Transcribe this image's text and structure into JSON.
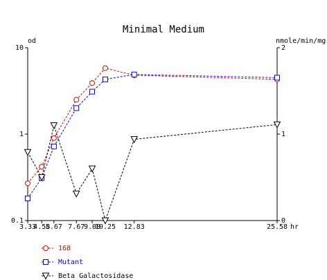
{
  "chart_data": {
    "type": "line",
    "title": "Minimal Medium",
    "left_axis": {
      "label": "od",
      "scale": "log",
      "range": [
        0.1,
        10
      ],
      "ticks": [
        {
          "value": 0.1,
          "label": "0.1"
        },
        {
          "value": 1,
          "label": "1"
        },
        {
          "value": 10,
          "label": "10"
        }
      ]
    },
    "right_axis": {
      "label": "nmole/min/mg",
      "scale": "linear",
      "range": [
        0,
        2
      ],
      "ticks": [
        {
          "value": 0,
          "label": "0"
        },
        {
          "value": 1,
          "label": "1"
        },
        {
          "value": 2,
          "label": "2"
        }
      ]
    },
    "x_axis": {
      "label": "hr",
      "range": [
        3.33,
        25.58
      ],
      "ticks": [
        {
          "value": 3.33,
          "label": "3.33"
        },
        {
          "value": 4.58,
          "label": "4.58"
        },
        {
          "value": 5.67,
          "label": "5.67"
        },
        {
          "value": 7.67,
          "label": "7.67"
        },
        {
          "value": 9.08,
          "label": "9.08"
        },
        {
          "value": 10.25,
          "label": "10.25"
        },
        {
          "value": 12.83,
          "label": "12.83"
        },
        {
          "value": 25.58,
          "label": "25.58"
        }
      ]
    },
    "grid": false,
    "legend_position": "bottom-left",
    "series": [
      {
        "name": "168",
        "axis": "left",
        "color": "#dd0000",
        "marker": "circle",
        "x": [
          3.33,
          4.58,
          5.67,
          7.67,
          9.08,
          10.25,
          12.83,
          25.58
        ],
        "y": [
          0.27,
          0.42,
          0.9,
          2.5,
          3.9,
          5.8,
          4.8,
          4.3
        ]
      },
      {
        "name": "Mutant",
        "axis": "left",
        "color": "#0000dd",
        "marker": "square",
        "x": [
          3.33,
          4.58,
          5.67,
          7.67,
          9.08,
          10.25,
          12.83,
          25.58
        ],
        "y": [
          0.18,
          0.31,
          0.72,
          2.0,
          3.1,
          4.3,
          4.9,
          4.5
        ]
      },
      {
        "name": "Beta Galactosidase",
        "axis": "right",
        "color": "#000000",
        "marker": "triangle-down",
        "x": [
          3.33,
          4.58,
          5.67,
          7.67,
          9.08,
          10.25,
          12.83,
          25.58
        ],
        "y": [
          0.79,
          0.5,
          1.1,
          0.31,
          0.6,
          0.0,
          0.94,
          1.11
        ]
      }
    ]
  }
}
